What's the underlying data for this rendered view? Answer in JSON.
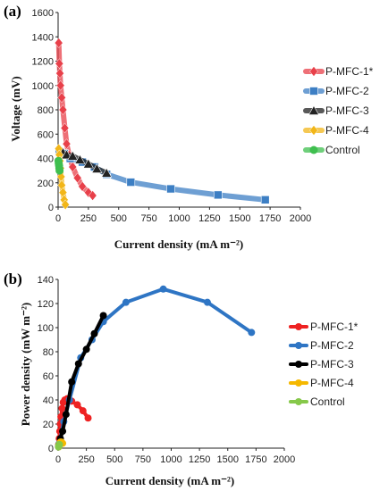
{
  "chart_data": [
    {
      "type": "line",
      "panel_label": "(a)",
      "xlabel": "Current  density  (mA m⁻²)",
      "ylabel": "Voltage (mV)",
      "xlim": [
        0,
        2000
      ],
      "ylim": [
        0,
        1600
      ],
      "x_ticks": [
        0,
        250,
        500,
        750,
        1000,
        1250,
        1500,
        1750,
        2000
      ],
      "y_ticks": [
        0,
        200,
        400,
        600,
        800,
        1000,
        1200,
        1400,
        1600
      ],
      "grid": false,
      "legend_position": "right",
      "series": [
        {
          "name": "P-MFC-1*",
          "color": "#e8404a",
          "marker": "diamond",
          "x": [
            5,
            10,
            15,
            20,
            30,
            40,
            55,
            70,
            90,
            120,
            160,
            200,
            250,
            285
          ],
          "y": [
            1350,
            1180,
            1100,
            1000,
            900,
            800,
            650,
            520,
            430,
            330,
            240,
            170,
            120,
            95
          ]
        },
        {
          "name": "P-MFC-2",
          "color": "#3d7fc4",
          "marker": "square",
          "x": [
            10,
            50,
            100,
            200,
            300,
            400,
            600,
            930,
            1320,
            1710
          ],
          "y": [
            460,
            440,
            400,
            370,
            330,
            270,
            205,
            150,
            100,
            60
          ]
        },
        {
          "name": "P-MFC-3",
          "color": "#222222",
          "marker": "triangle",
          "x": [
            20,
            40,
            70,
            120,
            180,
            250,
            320,
            400
          ],
          "y": [
            470,
            450,
            430,
            420,
            390,
            355,
            315,
            280
          ]
        },
        {
          "name": "P-MFC-4",
          "color": "#f2b619",
          "marker": "diamond",
          "x": [
            5,
            10,
            15,
            20,
            25,
            30,
            40,
            50,
            60
          ],
          "y": [
            480,
            430,
            380,
            320,
            250,
            180,
            120,
            60,
            20
          ]
        },
        {
          "name": "Control",
          "color": "#3fbf4f",
          "marker": "circle",
          "x": [
            3,
            5,
            8,
            10,
            12
          ],
          "y": [
            380,
            360,
            340,
            320,
            300
          ]
        }
      ]
    },
    {
      "type": "line",
      "panel_label": "(b)",
      "xlabel": "Current  density  (mA m⁻²)",
      "ylabel": "Power density  (mW m⁻²)",
      "xlim": [
        0,
        2000
      ],
      "ylim": [
        0,
        140
      ],
      "x_ticks": [
        0,
        250,
        500,
        750,
        1000,
        1250,
        1500,
        1750,
        2000
      ],
      "y_ticks": [
        0,
        20,
        40,
        60,
        80,
        100,
        120,
        140
      ],
      "grid": false,
      "legend_position": "right",
      "series": [
        {
          "name": "P-MFC-1*",
          "color": "#ee2222",
          "marker": "circle",
          "x": [
            5,
            10,
            15,
            20,
            25,
            35,
            45,
            60,
            80,
            120,
            170,
            220,
            265
          ],
          "y": [
            3,
            8,
            14,
            20,
            26,
            33,
            38,
            40,
            41,
            39,
            36,
            31,
            25
          ]
        },
        {
          "name": "P-MFC-2",
          "color": "#2e75c4",
          "marker": "circle",
          "x": [
            10,
            50,
            100,
            200,
            300,
            400,
            600,
            930,
            1320,
            1710
          ],
          "y": [
            4,
            22,
            40,
            75,
            90,
            105,
            121,
            132,
            121,
            96
          ]
        },
        {
          "name": "P-MFC-3",
          "color": "#000000",
          "marker": "circle",
          "x": [
            20,
            40,
            70,
            120,
            180,
            250,
            320,
            400
          ],
          "y": [
            8,
            14,
            28,
            55,
            70,
            82,
            95,
            110
          ]
        },
        {
          "name": "P-MFC-4",
          "color": "#f5b800",
          "marker": "circle",
          "x": [
            5,
            10,
            15,
            20,
            25,
            30,
            40
          ],
          "y": [
            1,
            3,
            4,
            5,
            5,
            5,
            4
          ]
        },
        {
          "name": "Control",
          "color": "#86c84a",
          "marker": "circle",
          "x": [
            3,
            5,
            8,
            10,
            12
          ],
          "y": [
            1,
            2,
            2,
            3,
            3
          ]
        }
      ]
    }
  ]
}
